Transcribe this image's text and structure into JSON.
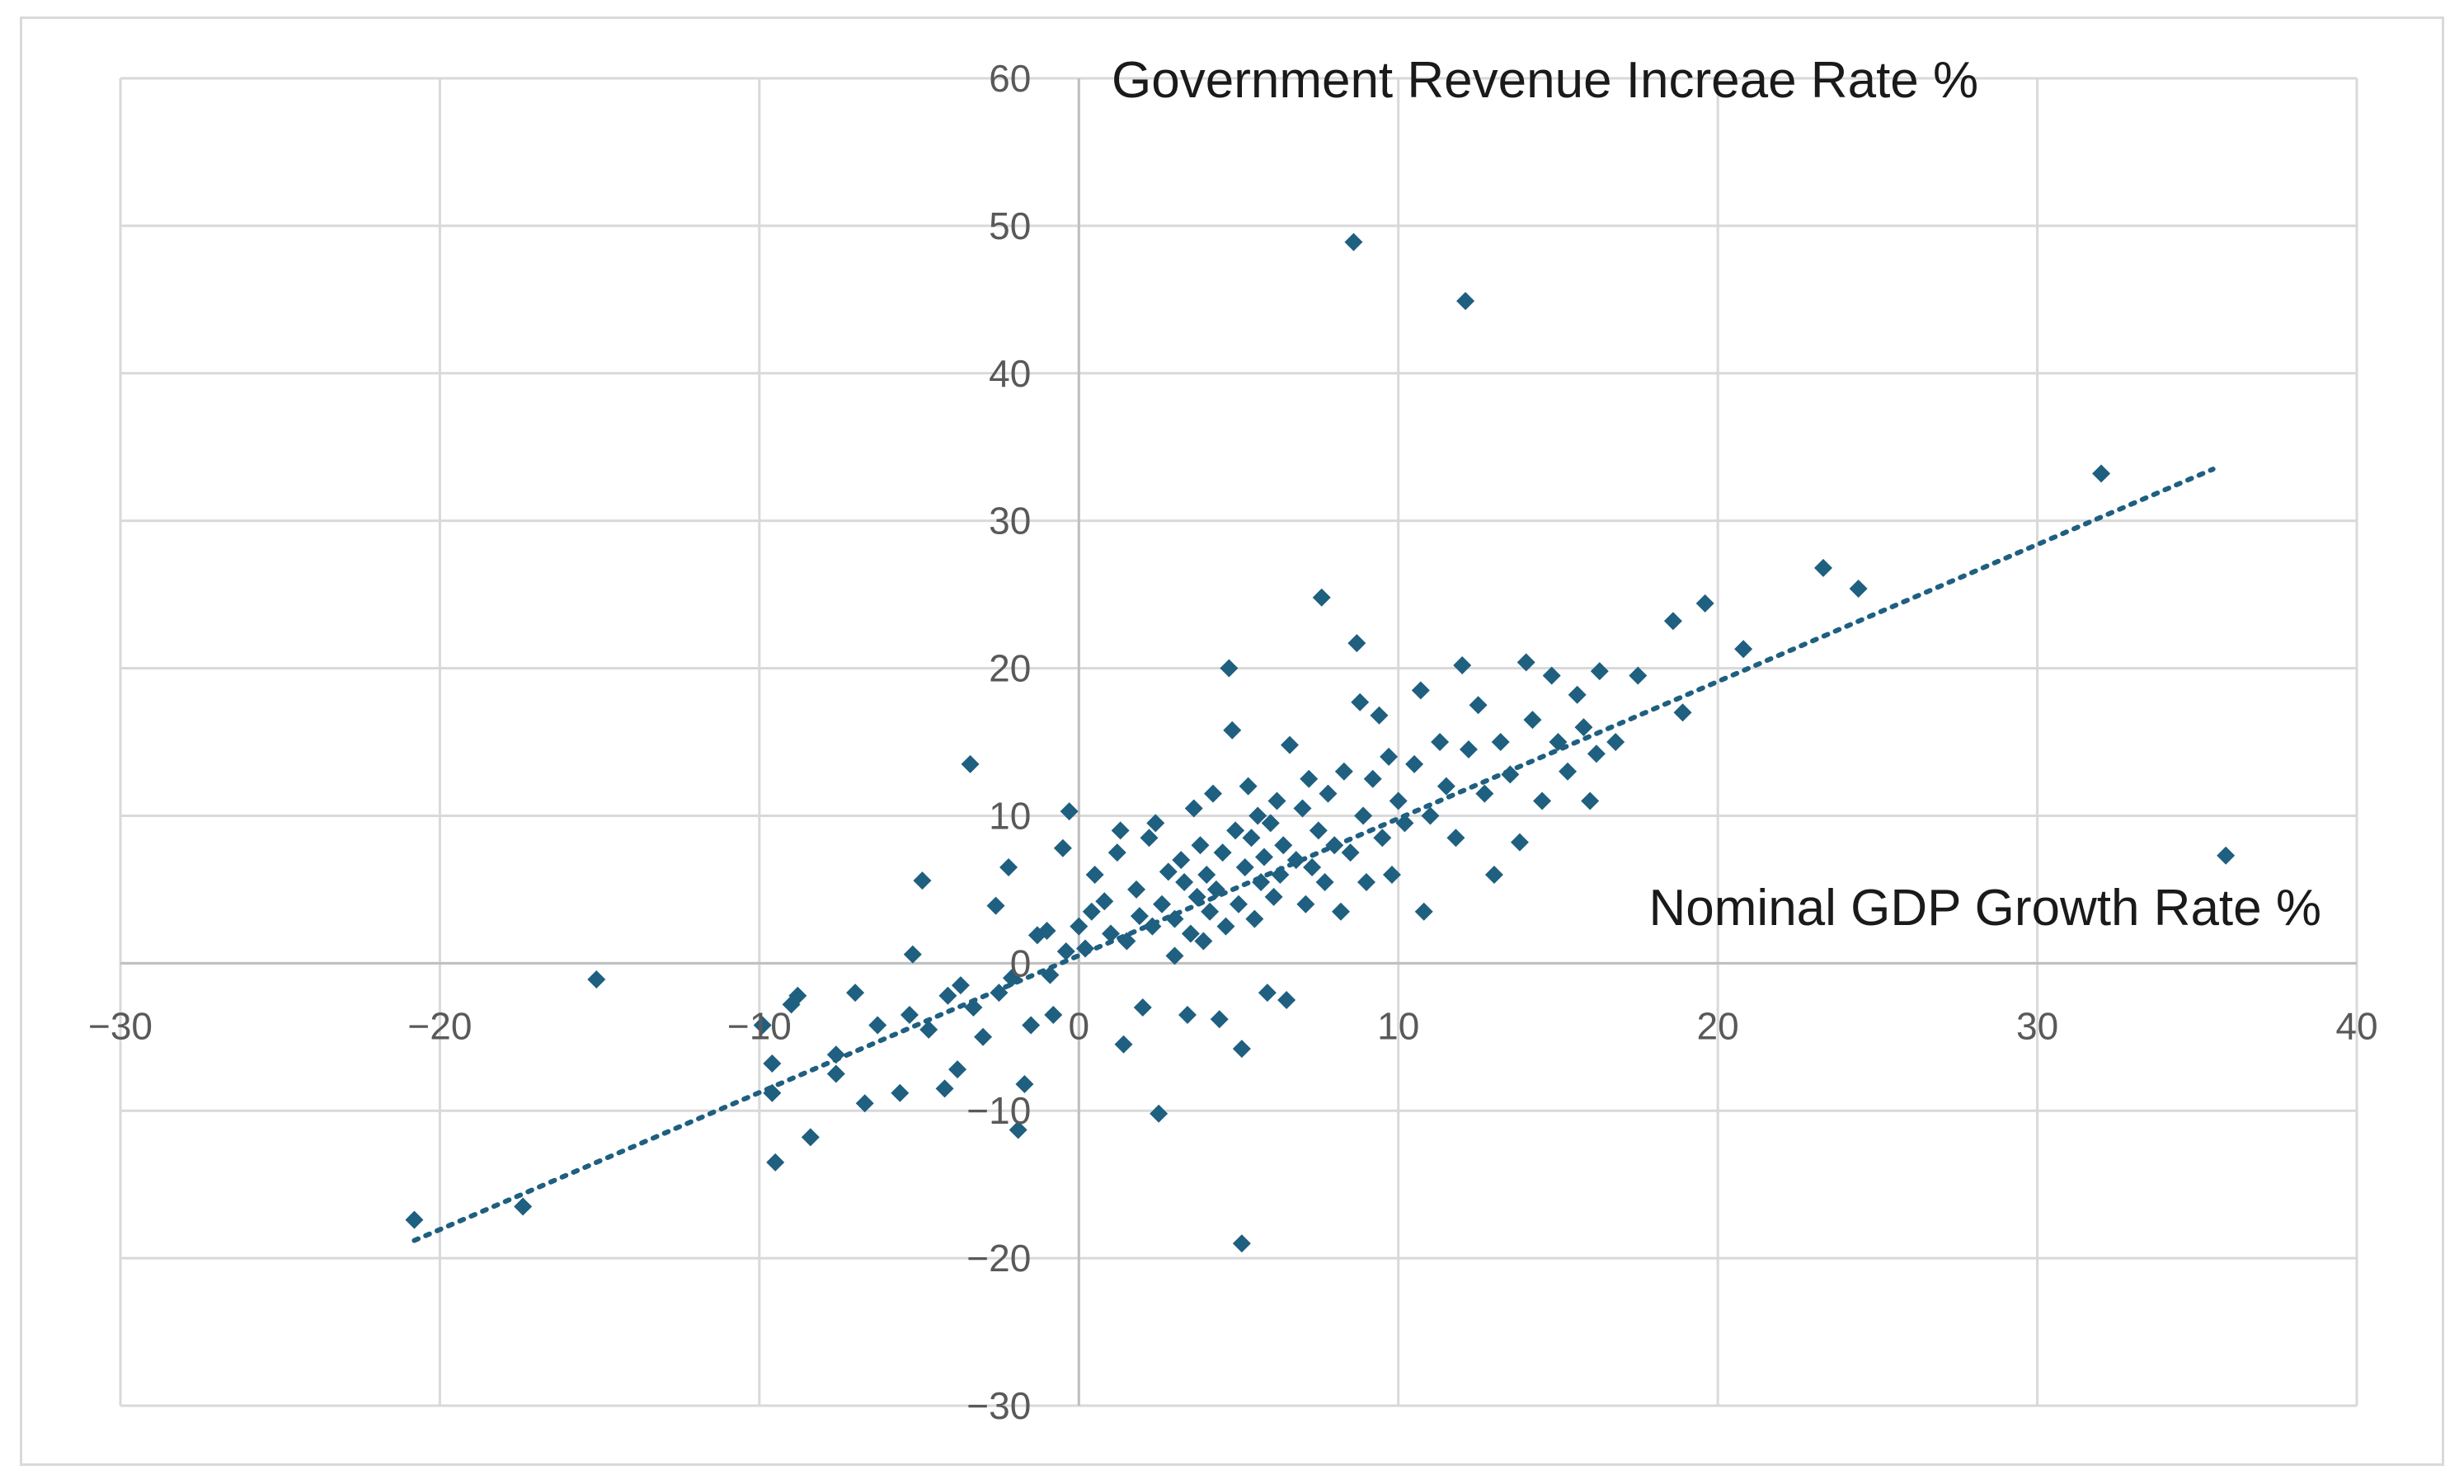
{
  "chart_data": {
    "type": "scatter",
    "title": "",
    "xlabel": "Nominal GDP Growth Rate %",
    "ylabel": "Government Revenue Increae Rate %",
    "xlim": [
      -30,
      40
    ],
    "ylim": [
      -30,
      60
    ],
    "x_ticks": [
      "−30",
      "−20",
      "−10",
      "0",
      "10",
      "20",
      "30",
      "40"
    ],
    "y_ticks": [
      "60",
      "50",
      "40",
      "30",
      "20",
      "10",
      "0",
      "−10",
      "−20",
      "−30"
    ],
    "grid": true,
    "marker_color": "#1f5f80",
    "trendline": {
      "style": "dotted",
      "from": [
        -20.8,
        -18.8
      ],
      "to": [
        35.5,
        33.5
      ]
    },
    "series": [
      {
        "points": [
          [
            -20.8,
            -17.4
          ],
          [
            -17.4,
            -16.5
          ],
          [
            -15.1,
            -1.1
          ],
          [
            -9.9,
            -4.2
          ],
          [
            -9.6,
            -6.8
          ],
          [
            -9.5,
            -13.5
          ],
          [
            -9.6,
            -8.8
          ],
          [
            -9.0,
            -2.8
          ],
          [
            -8.4,
            -11.8
          ],
          [
            -8.8,
            -2.2
          ],
          [
            -7.6,
            -6.2
          ],
          [
            -7.6,
            -7.5
          ],
          [
            -7.0,
            -2.0
          ],
          [
            -6.7,
            -9.5
          ],
          [
            -6.3,
            -4.2
          ],
          [
            -5.6,
            -8.8
          ],
          [
            -5.3,
            -3.5
          ],
          [
            -5.2,
            0.6
          ],
          [
            -4.9,
            5.6
          ],
          [
            -4.7,
            -4.5
          ],
          [
            -4.2,
            -8.5
          ],
          [
            -4.1,
            -2.2
          ],
          [
            -3.8,
            -7.2
          ],
          [
            -3.7,
            -1.5
          ],
          [
            -3.4,
            13.5
          ],
          [
            -3.3,
            -3.0
          ],
          [
            -3.0,
            -5.0
          ],
          [
            -2.6,
            3.9
          ],
          [
            -2.5,
            -2.0
          ],
          [
            -2.2,
            6.5
          ],
          [
            -2.1,
            -1.0
          ],
          [
            -1.9,
            -11.3
          ],
          [
            -1.7,
            -8.2
          ],
          [
            -1.5,
            -4.2
          ],
          [
            -1.3,
            1.9
          ],
          [
            -1.0,
            2.2
          ],
          [
            -0.9,
            -0.8
          ],
          [
            -0.8,
            -3.5
          ],
          [
            -0.5,
            7.8
          ],
          [
            -0.4,
            0.8
          ],
          [
            -0.3,
            10.3
          ],
          [
            0.0,
            2.5
          ],
          [
            0.2,
            1.0
          ],
          [
            0.4,
            3.5
          ],
          [
            0.5,
            6.0
          ],
          [
            0.8,
            4.2
          ],
          [
            1.0,
            2.0
          ],
          [
            1.2,
            7.5
          ],
          [
            1.3,
            9.0
          ],
          [
            1.4,
            -5.5
          ],
          [
            1.5,
            1.5
          ],
          [
            1.8,
            5.0
          ],
          [
            1.9,
            3.2
          ],
          [
            2.0,
            -3.0
          ],
          [
            2.2,
            8.5
          ],
          [
            2.3,
            2.5
          ],
          [
            2.4,
            9.5
          ],
          [
            2.5,
            -10.2
          ],
          [
            2.6,
            4.0
          ],
          [
            2.8,
            6.2
          ],
          [
            3.0,
            3.0
          ],
          [
            3.0,
            0.5
          ],
          [
            3.2,
            7.0
          ],
          [
            3.3,
            5.5
          ],
          [
            3.4,
            -3.5
          ],
          [
            3.5,
            2.0
          ],
          [
            3.6,
            10.5
          ],
          [
            3.7,
            4.5
          ],
          [
            3.8,
            8.0
          ],
          [
            3.9,
            1.5
          ],
          [
            4.0,
            6.0
          ],
          [
            4.1,
            3.5
          ],
          [
            4.2,
            11.5
          ],
          [
            4.3,
            5.0
          ],
          [
            4.4,
            -3.8
          ],
          [
            4.5,
            7.5
          ],
          [
            4.6,
            2.5
          ],
          [
            4.7,
            20.0
          ],
          [
            4.8,
            15.8
          ],
          [
            4.9,
            9.0
          ],
          [
            5.0,
            4.0
          ],
          [
            5.1,
            -5.8
          ],
          [
            5.1,
            -19.0
          ],
          [
            5.2,
            6.5
          ],
          [
            5.3,
            12.0
          ],
          [
            5.4,
            8.5
          ],
          [
            5.5,
            3.0
          ],
          [
            5.6,
            10.0
          ],
          [
            5.7,
            5.5
          ],
          [
            5.8,
            7.2
          ],
          [
            5.9,
            -2.0
          ],
          [
            6.0,
            9.5
          ],
          [
            6.1,
            4.5
          ],
          [
            6.2,
            11.0
          ],
          [
            6.3,
            6.0
          ],
          [
            6.4,
            8.0
          ],
          [
            6.5,
            -2.5
          ],
          [
            6.6,
            14.8
          ],
          [
            6.8,
            7.0
          ],
          [
            7.0,
            10.5
          ],
          [
            7.1,
            4.0
          ],
          [
            7.2,
            12.5
          ],
          [
            7.3,
            6.5
          ],
          [
            7.5,
            9.0
          ],
          [
            7.6,
            24.8
          ],
          [
            7.7,
            5.5
          ],
          [
            7.8,
            11.5
          ],
          [
            8.0,
            8.0
          ],
          [
            8.2,
            3.5
          ],
          [
            8.3,
            13.0
          ],
          [
            8.5,
            7.5
          ],
          [
            8.6,
            48.9
          ],
          [
            8.7,
            21.7
          ],
          [
            8.8,
            17.7
          ],
          [
            8.9,
            10.0
          ],
          [
            9.0,
            5.5
          ],
          [
            9.2,
            12.5
          ],
          [
            9.4,
            16.8
          ],
          [
            9.5,
            8.5
          ],
          [
            9.7,
            14.0
          ],
          [
            9.8,
            6.0
          ],
          [
            10.0,
            11.0
          ],
          [
            10.2,
            9.5
          ],
          [
            10.5,
            13.5
          ],
          [
            10.7,
            18.5
          ],
          [
            10.8,
            3.5
          ],
          [
            11.0,
            10.0
          ],
          [
            11.3,
            15.0
          ],
          [
            11.5,
            12.0
          ],
          [
            11.8,
            8.5
          ],
          [
            12.0,
            20.2
          ],
          [
            12.1,
            44.9
          ],
          [
            12.2,
            14.5
          ],
          [
            12.5,
            17.5
          ],
          [
            12.7,
            11.5
          ],
          [
            13.0,
            6.0
          ],
          [
            13.2,
            15.0
          ],
          [
            13.5,
            12.8
          ],
          [
            13.8,
            8.2
          ],
          [
            14.0,
            20.4
          ],
          [
            14.2,
            16.5
          ],
          [
            14.5,
            11.0
          ],
          [
            14.8,
            19.5
          ],
          [
            15.0,
            15.0
          ],
          [
            15.3,
            13.0
          ],
          [
            15.6,
            18.2
          ],
          [
            15.8,
            16.0
          ],
          [
            16.0,
            11.0
          ],
          [
            16.2,
            14.2
          ],
          [
            16.3,
            19.8
          ],
          [
            16.8,
            15.0
          ],
          [
            17.5,
            19.5
          ],
          [
            18.6,
            23.2
          ],
          [
            18.9,
            17.0
          ],
          [
            19.6,
            24.4
          ],
          [
            20.8,
            21.3
          ],
          [
            23.3,
            26.8
          ],
          [
            24.4,
            25.4
          ],
          [
            32.0,
            33.2
          ],
          [
            35.9,
            7.3
          ]
        ]
      }
    ]
  }
}
